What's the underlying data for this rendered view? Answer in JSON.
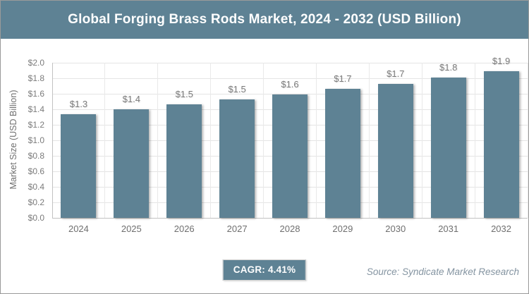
{
  "header": {
    "title": "Global Forging Brass Rods Market, 2024 - 2032 (USD Billion)"
  },
  "chart_data": {
    "type": "bar",
    "title": "Global Forging Brass Rods Market, 2024 - 2032 (USD Billion)",
    "categories": [
      "2024",
      "2025",
      "2026",
      "2027",
      "2028",
      "2029",
      "2030",
      "2031",
      "2032"
    ],
    "values": [
      1.34,
      1.4,
      1.46,
      1.53,
      1.59,
      1.66,
      1.73,
      1.81,
      1.89
    ],
    "value_labels": [
      "$1.3",
      "$1.4",
      "$1.5",
      "$1.5",
      "$1.6",
      "$1.7",
      "$1.7",
      "$1.8",
      "$1.9"
    ],
    "xlabel": "",
    "ylabel": "Market Size (USD Billion)",
    "ylim": [
      0,
      2.0
    ],
    "yticks": [
      {
        "value": 0.0,
        "label": "$0.0"
      },
      {
        "value": 0.2,
        "label": "$0.2"
      },
      {
        "value": 0.4,
        "label": "$0.4"
      },
      {
        "value": 0.6,
        "label": "$0.6"
      },
      {
        "value": 0.8,
        "label": "$0.8"
      },
      {
        "value": 1.0,
        "label": "$1.0"
      },
      {
        "value": 1.2,
        "label": "$1.2"
      },
      {
        "value": 1.4,
        "label": "$1.4"
      },
      {
        "value": 1.6,
        "label": "$1.6"
      },
      {
        "value": 1.8,
        "label": "$1.8"
      },
      {
        "value": 2.0,
        "label": "$2.0"
      }
    ],
    "grid": "horizontal and vertical gridlines, light gray",
    "legend": "none",
    "bar_color": "#5e8294"
  },
  "footer": {
    "cagr_label": "CAGR: 4.41%",
    "source": "Source: Syndicate Market Research"
  },
  "colors": {
    "accent_slate": "#5e8294",
    "header_text": "#ffffff",
    "grid": "#e4e4e4",
    "axis_line": "#c2c2c2",
    "tick_text": "#7b7b7b",
    "value_label_text": "#7b7b7b",
    "source_text": "#8494a1",
    "outer_border": "#9a9a9a"
  }
}
